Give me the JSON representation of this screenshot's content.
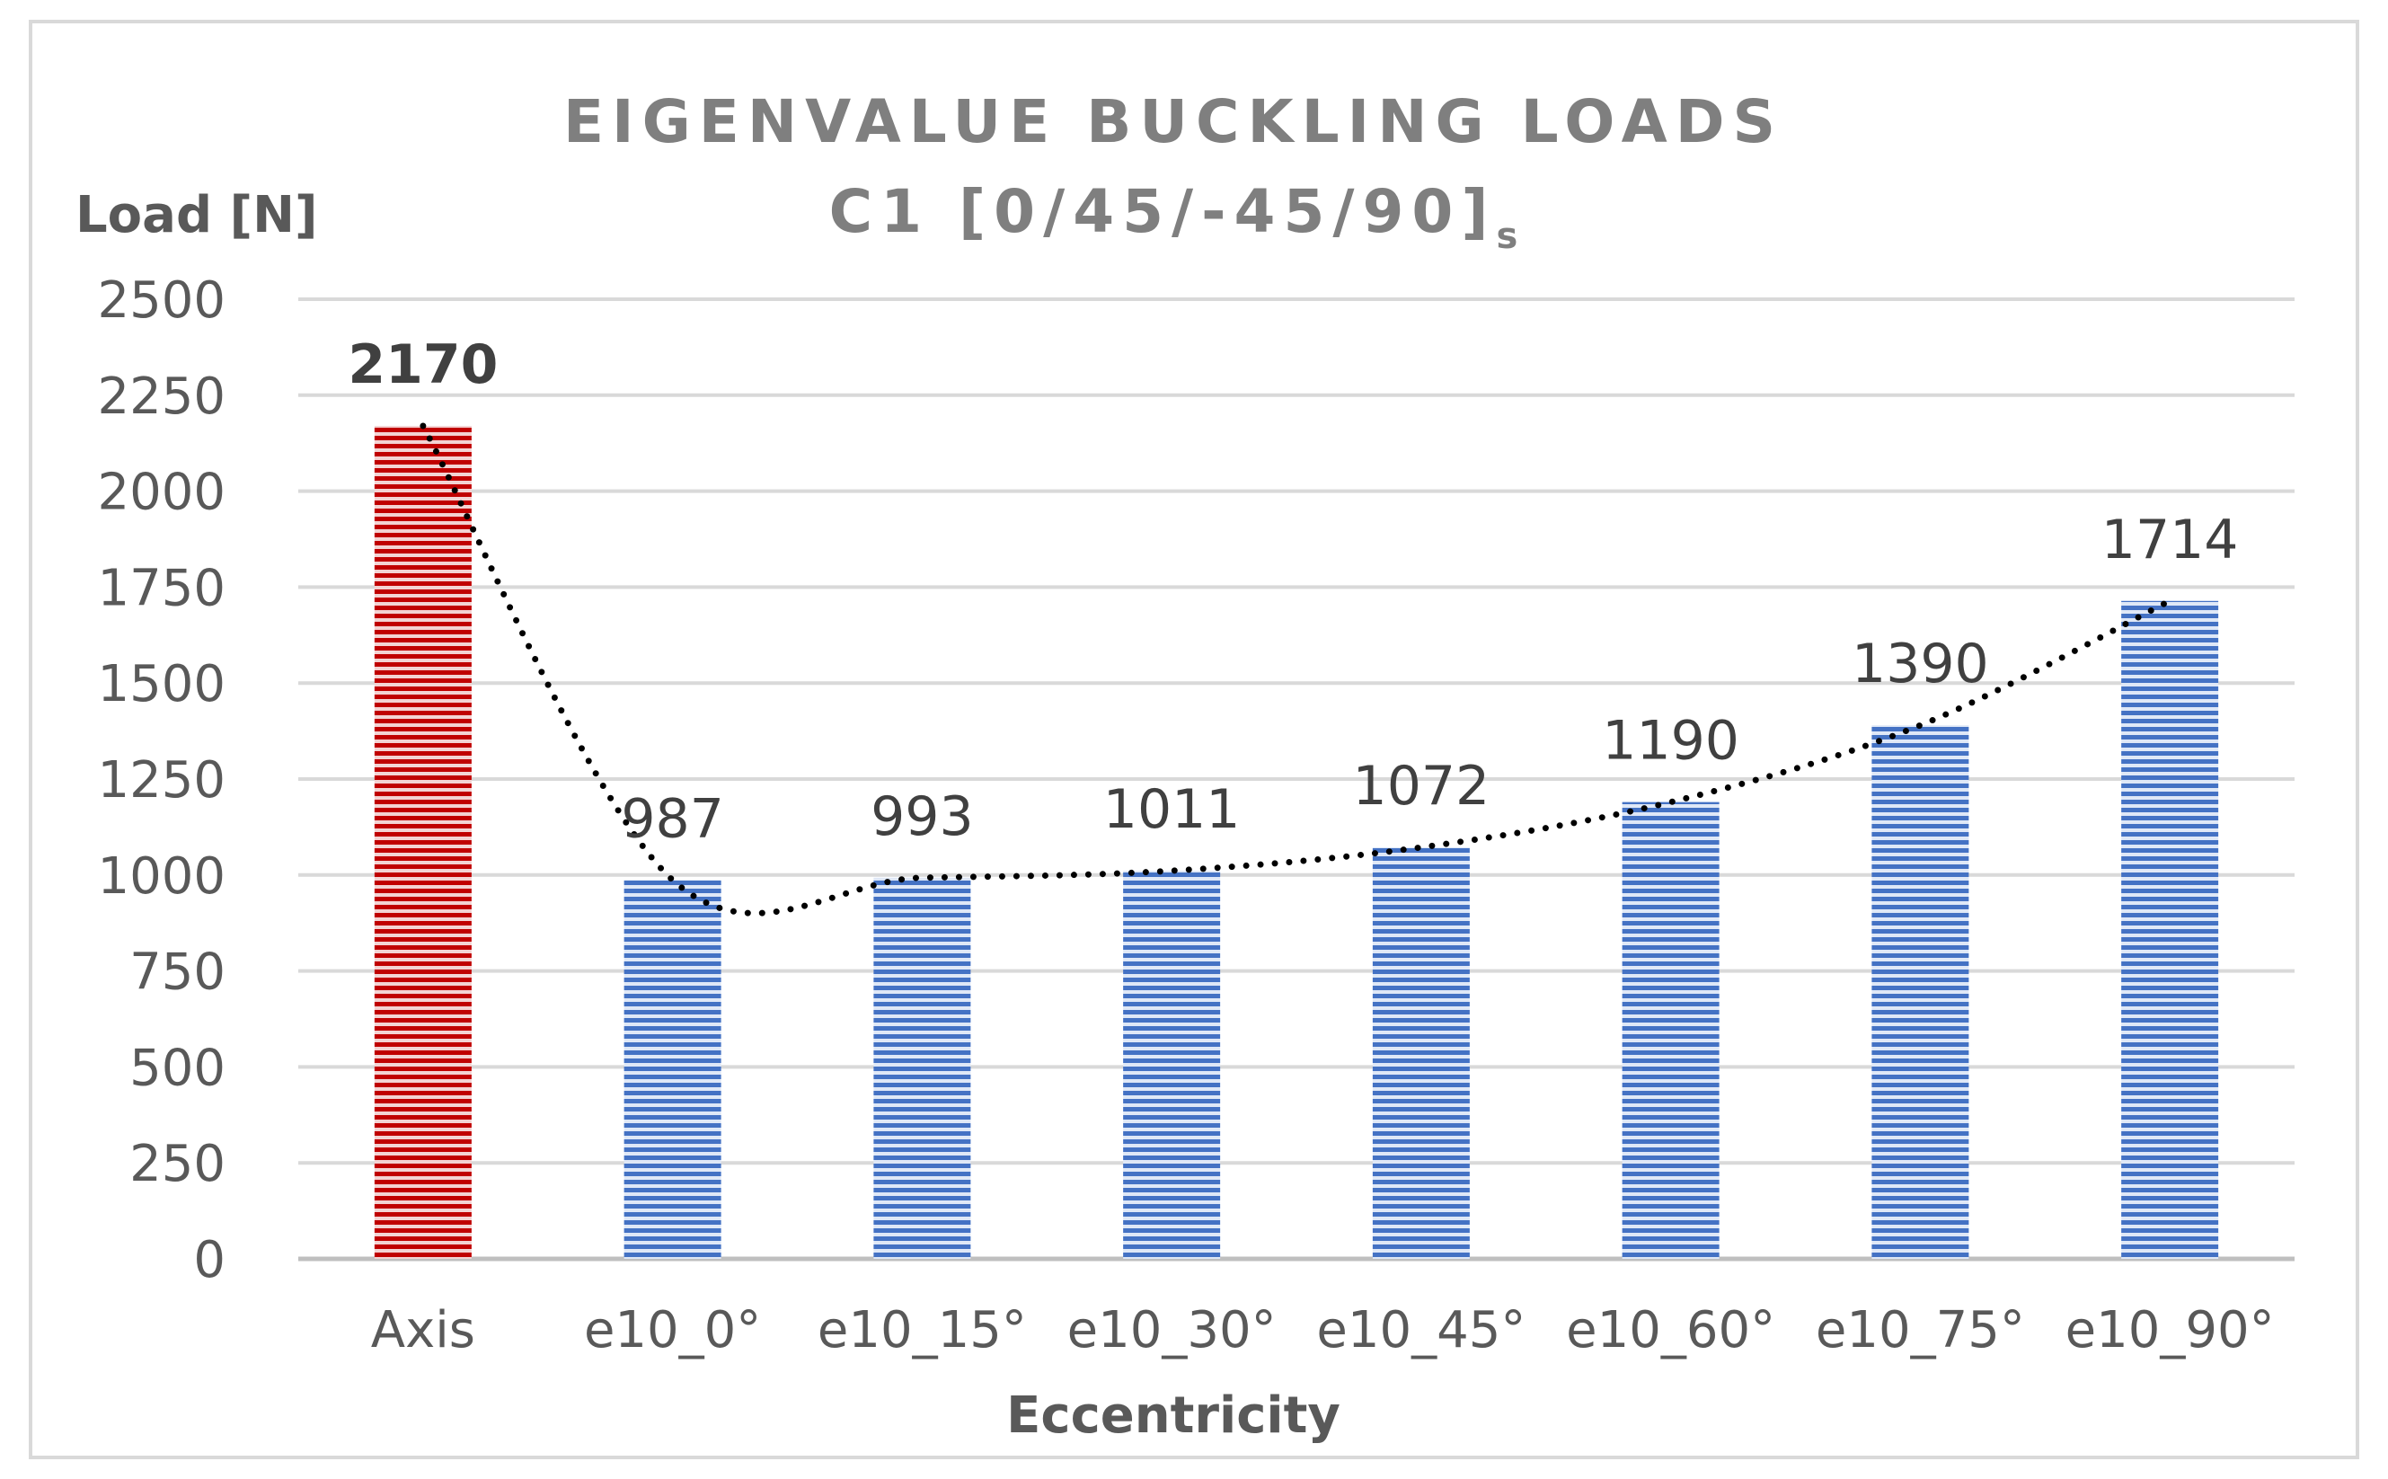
{
  "chart_data": {
    "type": "bar",
    "title_line1": "EIGENVALUE BUCKLING LOADS",
    "title_line2": "C1 [0/45/-45/90]",
    "title_subscript": "s",
    "ylabel": "Load [N]",
    "xlabel": "Eccentricity",
    "ylim": [
      0,
      2500
    ],
    "yticks": [
      0,
      250,
      500,
      750,
      1000,
      1250,
      1500,
      1750,
      2000,
      2250,
      2500
    ],
    "grid": true,
    "categories": [
      "Axis",
      "e10_0°",
      "e10_15°",
      "e10_30°",
      "e10_45°",
      "e10_60°",
      "e10_75°",
      "e10_90°"
    ],
    "values": [
      2170,
      987,
      993,
      1011,
      1072,
      1190,
      1390,
      1714
    ],
    "data_labels": [
      "2170",
      "987",
      "993",
      "1011",
      "1072",
      "1190",
      "1390",
      "1714"
    ],
    "highlight_index": 0,
    "colors": {
      "highlight_bar": "#c00000",
      "bar": "#4472c4",
      "trendline": "#000000",
      "grid": "#d9d9d9",
      "axis": "#bfbfbf"
    },
    "trendline": {
      "style": "dotted",
      "type": "smooth"
    }
  }
}
